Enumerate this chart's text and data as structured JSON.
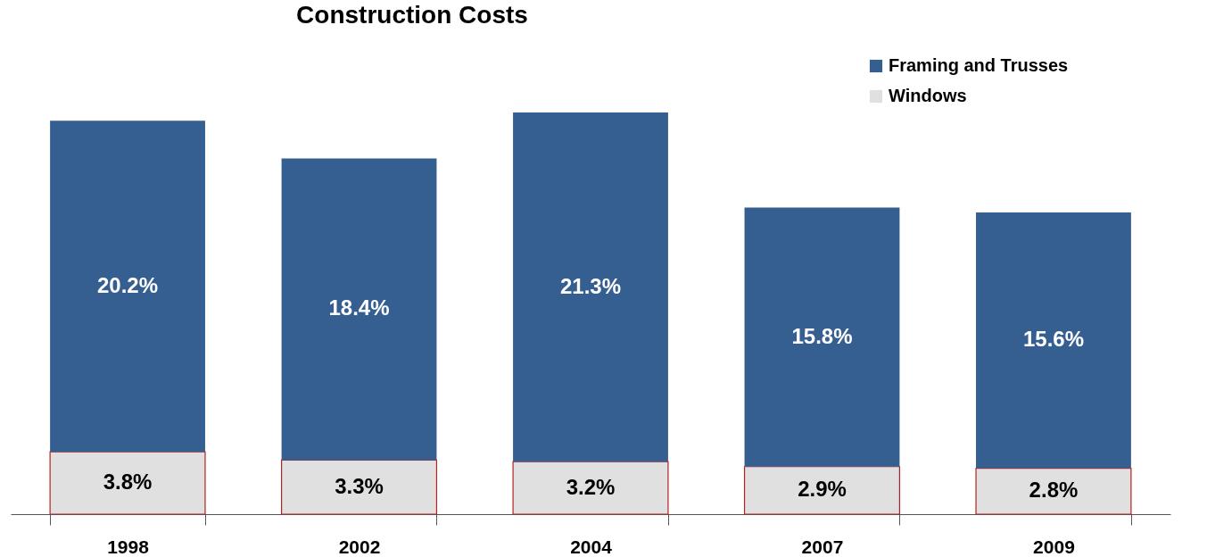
{
  "chart_data": {
    "type": "bar",
    "title": "Construction Costs",
    "stacked": true,
    "legend": "top right",
    "grid": false,
    "categories": [
      "1998",
      "2002",
      "2004",
      "2007",
      "2009"
    ],
    "series": [
      {
        "name": "Windows",
        "color": "#e0e0e0",
        "values": [
          3.8,
          3.3,
          3.2,
          2.9,
          2.8
        ],
        "value_labels": [
          "3.8%",
          "3.3%",
          "3.2%",
          "2.9%",
          "2.8%"
        ]
      },
      {
        "name": "Framing and Trusses",
        "color": "#365f91",
        "values": [
          20.2,
          18.4,
          21.3,
          15.8,
          15.6
        ],
        "value_labels": [
          "20.2%",
          "18.4%",
          "21.3%",
          "15.8%",
          "15.6%"
        ]
      }
    ]
  }
}
